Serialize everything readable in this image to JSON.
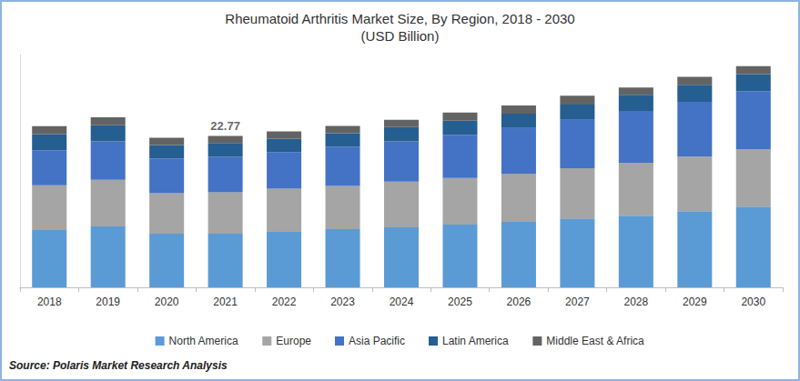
{
  "chart_data": {
    "type": "bar",
    "title": "Rheumatoid Arthritis Market Size, By Region, 2018 - 2030",
    "subtitle": "(USD Billion)",
    "source": "Source: Polaris Market Research Analysis",
    "stacked": true,
    "grid": false,
    "legend": "bottom",
    "tick_labels": "x",
    "ylim": [
      0,
      35
    ],
    "categories": [
      "2018",
      "2019",
      "2020",
      "2021",
      "2022",
      "2023",
      "2024",
      "2025",
      "2026",
      "2027",
      "2028",
      "2029",
      "2030"
    ],
    "series": [
      {
        "name": "North America",
        "color": "#5b9bd5",
        "values": [
          8.62,
          9.16,
          8.08,
          8.08,
          8.35,
          8.76,
          9.02,
          9.43,
          9.83,
          10.37,
          10.78,
          11.45,
          12.12
        ]
      },
      {
        "name": "Europe",
        "color": "#a5a5a5",
        "values": [
          6.74,
          7.0,
          6.06,
          6.2,
          6.47,
          6.47,
          6.87,
          7.0,
          7.27,
          7.54,
          7.95,
          8.22,
          8.62
        ]
      },
      {
        "name": "Asia Pacific",
        "color": "#4472c4",
        "values": [
          5.25,
          5.79,
          5.25,
          5.39,
          5.52,
          5.93,
          6.06,
          6.47,
          6.87,
          7.27,
          7.81,
          8.22,
          8.76
        ]
      },
      {
        "name": "Latin America",
        "color": "#255e91",
        "values": [
          2.42,
          2.42,
          2.02,
          2.02,
          2.02,
          2.02,
          2.16,
          2.16,
          2.16,
          2.29,
          2.42,
          2.56,
          2.56
        ]
      },
      {
        "name": "Middle East & Africa",
        "color": "#636363",
        "values": [
          1.21,
          1.21,
          1.08,
          1.08,
          1.08,
          1.08,
          1.08,
          1.21,
          1.21,
          1.35,
          1.08,
          1.21,
          1.21
        ]
      }
    ],
    "annotations": [
      {
        "category": "2021",
        "value": 22.77
      }
    ]
  }
}
